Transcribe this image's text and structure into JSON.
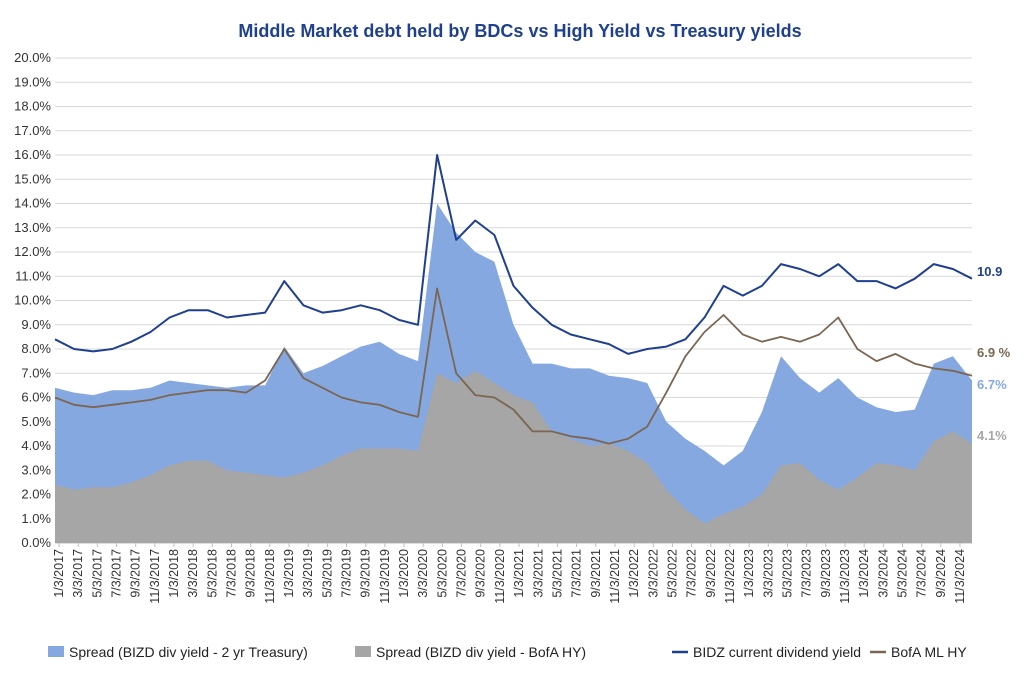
{
  "chart_data": {
    "type": "area",
    "title": "Middle Market debt held by BDCs vs High Yield vs Treasury yields",
    "xlabel": "",
    "ylabel": "",
    "ylim": [
      0,
      20
    ],
    "y_ticks": [
      "0.0%",
      "1.0%",
      "2.0%",
      "3.0%",
      "4.0%",
      "5.0%",
      "6.0%",
      "7.0%",
      "8.0%",
      "9.0%",
      "10.0%",
      "11.0%",
      "12.0%",
      "13.0%",
      "14.0%",
      "15.0%",
      "16.0%",
      "17.0%",
      "18.0%",
      "19.0%",
      "20.0%"
    ],
    "x_ticks": [
      "1/3/2017",
      "3/3/2017",
      "5/3/2017",
      "7/3/2017",
      "9/3/2017",
      "11/3/2017",
      "1/3/2018",
      "3/3/2018",
      "5/3/2018",
      "7/3/2018",
      "9/3/2018",
      "11/3/2018",
      "1/3/2019",
      "3/3/2019",
      "5/3/2019",
      "7/3/2019",
      "9/3/2019",
      "11/3/2019",
      "1/3/2020",
      "3/3/2020",
      "5/3/2020",
      "7/3/2020",
      "9/3/2020",
      "11/3/2020",
      "1/3/2021",
      "3/3/2021",
      "5/3/2021",
      "7/3/2021",
      "9/3/2021",
      "11/3/2021",
      "1/3/2022",
      "3/3/2022",
      "5/3/2022",
      "7/3/2022",
      "9/3/2022",
      "11/3/2022",
      "1/3/2023",
      "3/3/2023",
      "5/3/2023",
      "7/3/2023",
      "9/3/2023",
      "11/3/2023",
      "1/3/2024",
      "3/3/2024",
      "5/3/2024",
      "7/3/2024",
      "9/3/2024",
      "11/3/2024"
    ],
    "grid": true,
    "legend_position": "bottom",
    "series": [
      {
        "name": "Spread (BIZD div yield - 2 yr Treasury)",
        "kind": "area",
        "color": "#86a8e0",
        "end_label": "6.7%",
        "values": [
          6.4,
          6.2,
          6.1,
          6.3,
          6.3,
          6.4,
          6.7,
          6.6,
          6.5,
          6.4,
          6.5,
          6.5,
          8.1,
          7.0,
          7.3,
          7.7,
          8.1,
          8.3,
          7.8,
          7.5,
          14.0,
          12.8,
          12.0,
          11.6,
          9.0,
          7.4,
          7.4,
          7.2,
          7.2,
          6.9,
          6.8,
          6.6,
          5.0,
          4.3,
          3.8,
          3.2,
          3.8,
          5.4,
          7.7,
          6.8,
          6.2,
          6.8,
          6.0,
          5.6,
          5.4,
          5.5,
          7.4,
          7.7,
          6.7
        ]
      },
      {
        "name": "Spread (BIZD div yield - BofA HY)",
        "kind": "area",
        "color": "#a6a6a6",
        "end_label": "4.1%",
        "values": [
          2.4,
          2.2,
          2.3,
          2.3,
          2.5,
          2.8,
          3.2,
          3.4,
          3.4,
          3.0,
          2.9,
          2.8,
          2.7,
          2.9,
          3.2,
          3.6,
          3.9,
          3.9,
          3.9,
          3.8,
          7.0,
          6.6,
          7.1,
          6.6,
          6.1,
          5.8,
          4.6,
          4.3,
          4.0,
          4.1,
          3.8,
          3.3,
          2.2,
          1.4,
          0.8,
          1.2,
          1.5,
          2.0,
          3.2,
          3.3,
          2.6,
          2.2,
          2.7,
          3.3,
          3.2,
          3.0,
          4.2,
          4.6,
          4.1
        ]
      },
      {
        "name": "BIDZ current dividend yield",
        "kind": "line",
        "color": "#1f3f8f",
        "end_label": "10.9",
        "values": [
          8.4,
          8.0,
          7.9,
          8.0,
          8.3,
          8.7,
          9.3,
          9.6,
          9.6,
          9.3,
          9.4,
          9.5,
          10.8,
          9.8,
          9.5,
          9.6,
          9.8,
          9.6,
          9.2,
          9.0,
          16.0,
          12.5,
          13.3,
          12.7,
          10.6,
          9.7,
          9.0,
          8.6,
          8.4,
          8.2,
          7.8,
          8.0,
          8.1,
          8.4,
          9.3,
          10.6,
          10.2,
          10.6,
          11.5,
          11.3,
          11.0,
          11.5,
          10.8,
          10.8,
          10.5,
          10.9,
          11.5,
          11.3,
          10.9
        ]
      },
      {
        "name": "BofA ML HY",
        "kind": "line",
        "color": "#7a6652",
        "end_label": "6.9 %",
        "values": [
          6.0,
          5.7,
          5.6,
          5.7,
          5.8,
          5.9,
          6.1,
          6.2,
          6.3,
          6.3,
          6.2,
          6.7,
          8.0,
          6.8,
          6.4,
          6.0,
          5.8,
          5.7,
          5.4,
          5.2,
          10.5,
          7.0,
          6.1,
          6.0,
          5.5,
          4.6,
          4.6,
          4.4,
          4.3,
          4.1,
          4.3,
          4.8,
          6.2,
          7.7,
          8.7,
          9.4,
          8.6,
          8.3,
          8.5,
          8.3,
          8.6,
          9.3,
          8.0,
          7.5,
          7.8,
          7.4,
          7.2,
          7.1,
          6.9
        ]
      }
    ]
  }
}
